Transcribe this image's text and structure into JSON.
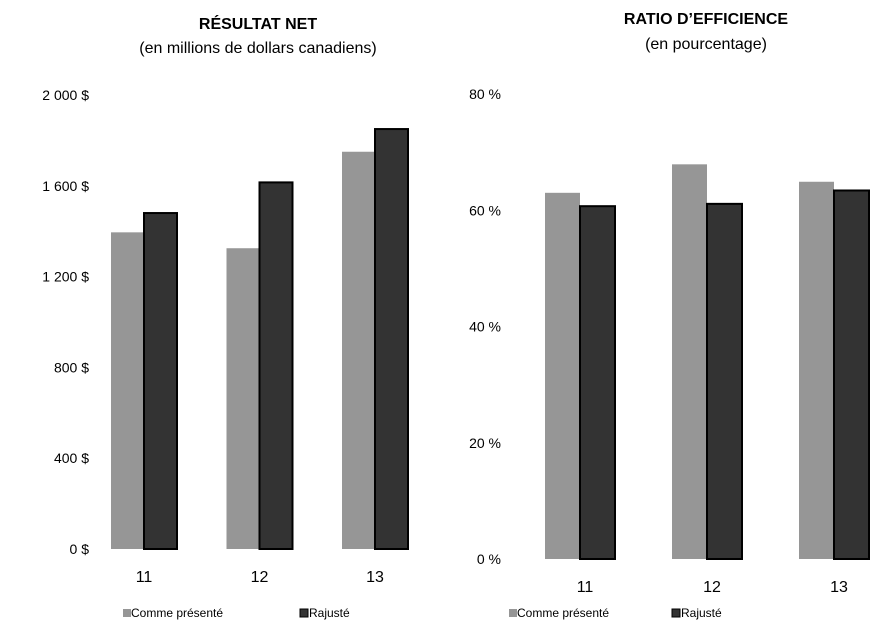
{
  "chart_data": [
    {
      "type": "bar",
      "title": "RÉSULTAT NET",
      "subtitle": "(en millions de dollars canadiens)",
      "categories": [
        "11",
        "12",
        "13"
      ],
      "series": [
        {
          "name": "Comme présenté",
          "values": [
            1395,
            1325,
            1750
          ],
          "color": "#969696"
        },
        {
          "name": "Rajusté",
          "values": [
            1480,
            1615,
            1850
          ],
          "color": "#333333"
        }
      ],
      "yticks": [
        "0 $",
        "400 $",
        "800 $",
        "1 200 $",
        "1 600 $",
        "2 000 $"
      ],
      "ylim": [
        0,
        2000
      ],
      "legend_position": "bottom",
      "grid": false
    },
    {
      "type": "bar",
      "title": "RATIO D’EFFICIENCE",
      "subtitle": "(en pourcentage)",
      "categories": [
        "11",
        "12",
        "13"
      ],
      "series": [
        {
          "name": "Comme présenté",
          "values": [
            63.0,
            67.9,
            64.9
          ],
          "color": "#969696"
        },
        {
          "name": "Rajusté",
          "values": [
            60.7,
            61.1,
            63.4
          ],
          "color": "#333333"
        }
      ],
      "yticks": [
        "0 %",
        "20 %",
        "40 %",
        "60 %",
        "80 %"
      ],
      "ylim": [
        0,
        80
      ],
      "legend_position": "bottom",
      "grid": false
    }
  ]
}
